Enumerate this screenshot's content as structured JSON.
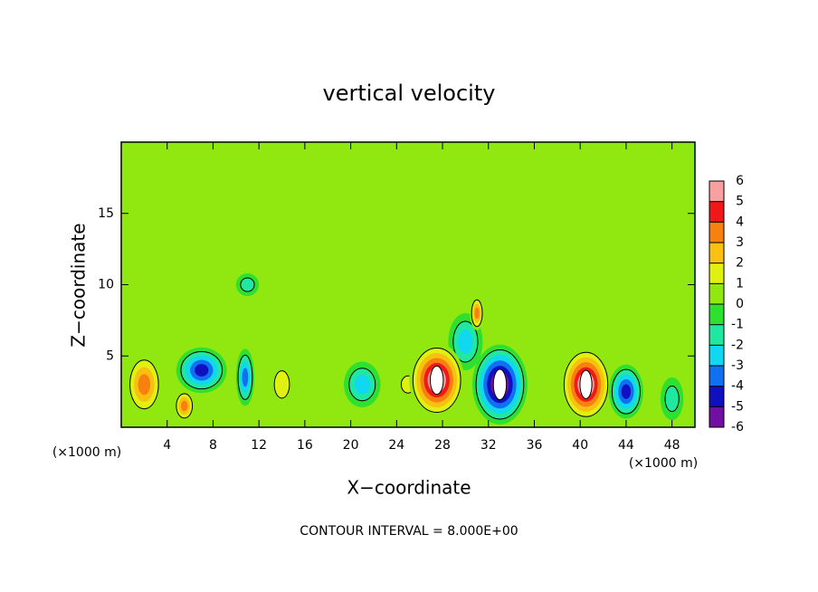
{
  "chart_data": {
    "type": "contour",
    "title": "vertical velocity",
    "x_label": "X−coordinate",
    "y_label": "Z−coordinate",
    "x_unit": "(×1000 m)",
    "x_unit_right": "(×1000 m)",
    "footer": "CONTOUR INTERVAL = 8.000E+00",
    "xlim": [
      0,
      50
    ],
    "ylim": [
      0,
      20
    ],
    "xticks": [
      4,
      8,
      12,
      16,
      20,
      24,
      28,
      32,
      36,
      40,
      44,
      48
    ],
    "yticks": [
      5,
      10,
      15
    ],
    "background": 0.3,
    "colorbar": {
      "levels": [
        6,
        5,
        4,
        3,
        2,
        1,
        0,
        -1,
        -2,
        -3,
        -4,
        -5,
        -6
      ],
      "colors": [
        "#f8a0a0",
        "#f01818",
        "#f88010",
        "#f8c010",
        "#e0f010",
        "#90e810",
        "#30e030",
        "#20e8a0",
        "#10d8f0",
        "#1070f0",
        "#1010c0",
        "#7010a0"
      ]
    },
    "features": [
      {
        "x": 2,
        "z": 3,
        "w": 4,
        "rx": 1.6,
        "rz": 2.2
      },
      {
        "x": 5.5,
        "z": 1.5,
        "w": 4,
        "rx": 0.9,
        "rz": 1.1
      },
      {
        "x": 7,
        "z": 4,
        "w": -5,
        "rx": 2.2,
        "rz": 1.6
      },
      {
        "x": 10.8,
        "z": 3.5,
        "w": -4,
        "rx": 0.8,
        "rz": 2
      },
      {
        "x": 14,
        "z": 3,
        "w": 2,
        "rx": 1.1,
        "rz": 1.6
      },
      {
        "x": 21,
        "z": 3,
        "w": -3,
        "rx": 1.6,
        "rz": 1.6
      },
      {
        "x": 25,
        "z": 3,
        "w": 2,
        "rx": 1,
        "rz": 1
      },
      {
        "x": 30,
        "z": 6,
        "w": -3,
        "rx": 1.5,
        "rz": 2
      },
      {
        "x": 27.5,
        "z": 3.3,
        "w": 7,
        "rx": 2.4,
        "rz": 2.6
      },
      {
        "x": 31,
        "z": 8,
        "w": 4,
        "rx": 0.6,
        "rz": 1.2
      },
      {
        "x": 33,
        "z": 3,
        "w": -7,
        "rx": 2.4,
        "rz": 2.8
      },
      {
        "x": 40.5,
        "z": 3,
        "w": 7,
        "rx": 2.2,
        "rz": 2.6
      },
      {
        "x": 44,
        "z": 2.5,
        "w": -5,
        "rx": 1.5,
        "rz": 1.9
      },
      {
        "x": 48,
        "z": 2,
        "w": -2,
        "rx": 1,
        "rz": 1.5
      },
      {
        "x": 11,
        "z": 10,
        "w": -2,
        "rx": 1,
        "rz": 0.8
      }
    ]
  }
}
